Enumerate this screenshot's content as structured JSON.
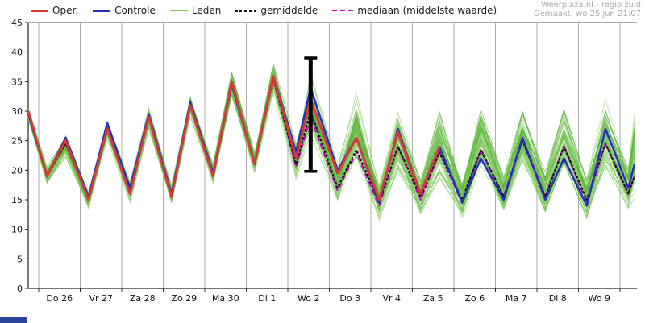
{
  "attribution": {
    "source": "Weerplaza.nl - regio zuid",
    "generated": "Gemaakt: wo 25 jun 21:07"
  },
  "colors": {
    "oper": "#d23b3b",
    "controle": "#2430b8",
    "leden": "#7cc95a",
    "gemiddelde": "#111111",
    "mediaan": "#cc00cc",
    "grid": "#8a8a8a",
    "errorbar": "#000000"
  },
  "chart_data": {
    "type": "line",
    "title": "",
    "xlabel": "",
    "ylabel": "",
    "ylim": [
      0,
      45
    ],
    "y_tick_step": 5,
    "grid": "vertical-day-lines",
    "legend_position": "top",
    "x_tick_labels": [
      "Do 26",
      "Vr 27",
      "Za 28",
      "Zo 29",
      "Ma 30",
      "Di 1",
      "Wo 2",
      "Do 3",
      "Vr 4",
      "Za 5",
      "Zo 6",
      "Ma 7",
      "Di 8",
      "Wo 9"
    ],
    "x_days": [
      -0.25,
      0.2,
      0.65,
      1.2,
      1.65,
      2.2,
      2.65,
      3.2,
      3.65,
      4.2,
      4.65,
      5.2,
      5.65,
      6.2,
      6.55,
      7.2,
      7.65,
      8.2,
      8.65,
      9.2,
      9.65,
      10.2,
      10.65,
      11.2,
      11.65,
      12.2,
      12.65,
      13.2,
      13.65,
      14.2,
      14.35
    ],
    "series": [
      {
        "name": "Oper.",
        "color": "#d23b3b",
        "style": "solid",
        "width": 3,
        "values": [
          30,
          19,
          25,
          15,
          27,
          16,
          29,
          15.5,
          31,
          19,
          35,
          21,
          36,
          22,
          32,
          19.5,
          25.5,
          15,
          26.5,
          16,
          24,
          null,
          null,
          null,
          null,
          null,
          null,
          null,
          null,
          null,
          null
        ]
      },
      {
        "name": "Controle",
        "color": "#2430b8",
        "style": "solid",
        "width": 2.5,
        "values": [
          29.5,
          19,
          25.5,
          15.5,
          28,
          17,
          29.5,
          16,
          31.5,
          19.5,
          34.5,
          21,
          36,
          23,
          34,
          20,
          25.5,
          14.5,
          27,
          16,
          24,
          14.5,
          22,
          15,
          25.5,
          15,
          22,
          14,
          27,
          17,
          21
        ]
      },
      {
        "name": "gemiddelde",
        "color": "#111111",
        "style": "dotted",
        "width": 2.2,
        "values": [
          29.5,
          19,
          24.5,
          15.5,
          27,
          16.5,
          29,
          16,
          31,
          19,
          34.5,
          21,
          35.5,
          21,
          30,
          17,
          23.5,
          14.5,
          24,
          15.5,
          23,
          15,
          23.5,
          15.5,
          25,
          15.5,
          24,
          15,
          24.5,
          16,
          19
        ]
      },
      {
        "name": "mediaan (middelste waarde)",
        "color": "#cc00cc",
        "style": "dashed",
        "width": 2,
        "values": [
          29.5,
          19,
          24.5,
          15.5,
          27,
          16.5,
          29,
          16,
          31,
          19,
          34.5,
          21,
          35.5,
          20.5,
          29,
          16.5,
          23,
          14,
          24,
          15,
          23,
          14.5,
          23.5,
          15.5,
          25.5,
          15.5,
          24,
          14.5,
          24.5,
          16,
          19
        ]
      }
    ],
    "ensemble": {
      "name": "Leden",
      "count": 51,
      "colors": [
        "#4ea82e",
        "#63b93f",
        "#7cc95a",
        "#90d46e"
      ],
      "envelope_min": [
        28.5,
        17.5,
        22,
        13,
        25,
        14.5,
        27,
        14,
        29,
        17.5,
        32,
        19.5,
        33,
        18,
        26,
        13.5,
        20,
        11,
        19,
        12,
        18,
        11.5,
        19,
        12,
        20,
        12,
        19,
        11.5,
        19,
        13,
        15
      ],
      "envelope_max": [
        30.5,
        20.5,
        26,
        16.5,
        28.5,
        18,
        30.5,
        17.5,
        33,
        21,
        36.5,
        23,
        38.5,
        25,
        36.5,
        21,
        33,
        18,
        30,
        19,
        31,
        19,
        32,
        19.5,
        31,
        20,
        31.5,
        19,
        32,
        21,
        30
      ]
    },
    "errorbar": {
      "x_day": 6.55,
      "low": 19.8,
      "high": 39
    }
  }
}
